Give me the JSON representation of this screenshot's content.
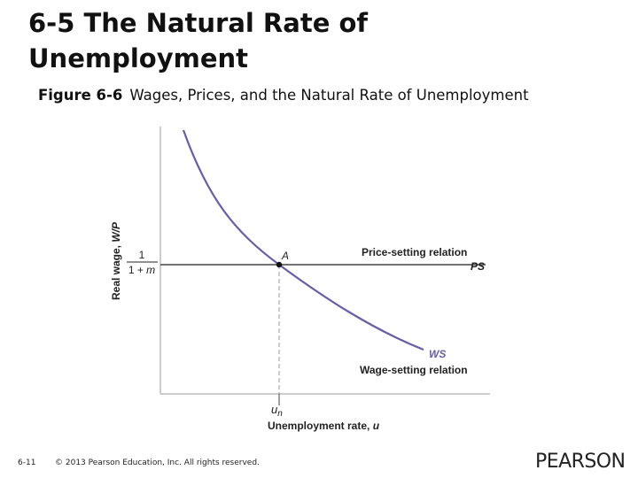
{
  "slide": {
    "title_lines": [
      "6-5 The Natural Rate of",
      "Unemployment"
    ],
    "figure_label": "Figure 6-6",
    "figure_caption": "Wages, Prices, and the Natural Rate of Unemployment"
  },
  "diagram": {
    "y_axis_label": {
      "text": "Real wage, ",
      "italic": "W/P"
    },
    "fraction": {
      "numerator": "1",
      "denominator": "1 + ",
      "denominator_italic": "m"
    },
    "point_label": "A",
    "price_setting_label": "Price-setting relation",
    "ps_label": "PS",
    "ws_label": "WS",
    "wage_setting_label": "Wage-setting relation",
    "un_label": {
      "base": "u",
      "sub": "n"
    },
    "x_axis_label": {
      "text": "Unemployment rate, ",
      "italic": "u"
    }
  },
  "footer": {
    "page": "6-11",
    "copyright": "© 2013 Pearson Education, Inc. All rights reserved.",
    "logo": "PEARSON"
  }
}
